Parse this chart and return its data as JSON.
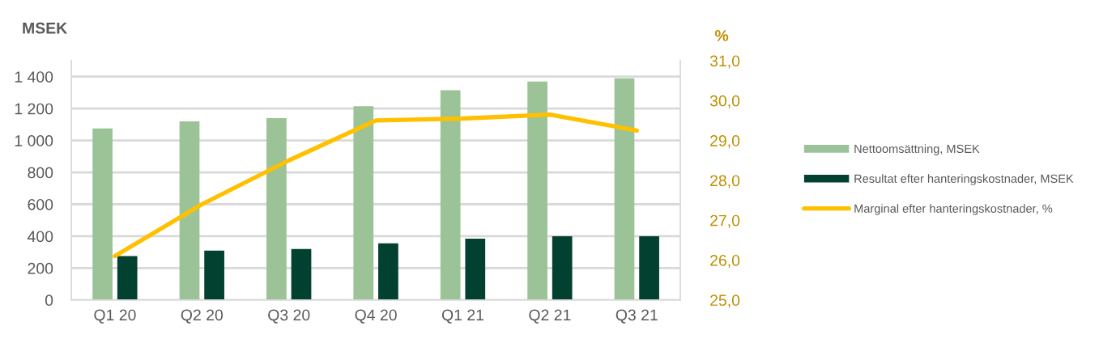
{
  "chart_data": {
    "type": "bar",
    "categories": [
      "Q1 20",
      "Q2 20",
      "Q3 20",
      "Q4 20",
      "Q1 21",
      "Q2 21",
      "Q3 21"
    ],
    "series": [
      {
        "name": "Nettoomsättning, MSEK",
        "color": "#9bc397",
        "values": [
          1075,
          1120,
          1140,
          1215,
          1315,
          1370,
          1390
        ]
      },
      {
        "name": "Resultat efter hanteringskostnader, MSEK",
        "color": "#024030",
        "values": [
          275,
          310,
          320,
          355,
          385,
          400,
          400
        ]
      },
      {
        "name": "Marginal efter hanteringskostnader, %",
        "type": "line",
        "axis": "y2",
        "color": "#ffc000",
        "values": [
          26.1,
          27.4,
          28.5,
          29.5,
          29.55,
          29.65,
          29.25
        ]
      }
    ],
    "ylabel": "MSEK",
    "y2label": "%",
    "ylim": [
      0,
      1500
    ],
    "yticks": [
      0,
      200,
      400,
      600,
      800,
      {
        "value": 1000,
        "label": "1 000"
      },
      {
        "value": 1200,
        "label": "1 200"
      },
      {
        "value": 1400,
        "label": "1 400"
      }
    ],
    "y2lim": [
      25,
      31
    ],
    "y2ticks": [
      {
        "value": 25,
        "label": "25,0"
      },
      {
        "value": 26,
        "label": "26,0"
      },
      {
        "value": 27,
        "label": "27,0"
      },
      {
        "value": 28,
        "label": "28,0"
      },
      {
        "value": 29,
        "label": "29,0"
      },
      {
        "value": 30,
        "label": "30,0"
      },
      {
        "value": 31,
        "label": "31,0"
      }
    ],
    "grid": "y",
    "legend": "right"
  }
}
